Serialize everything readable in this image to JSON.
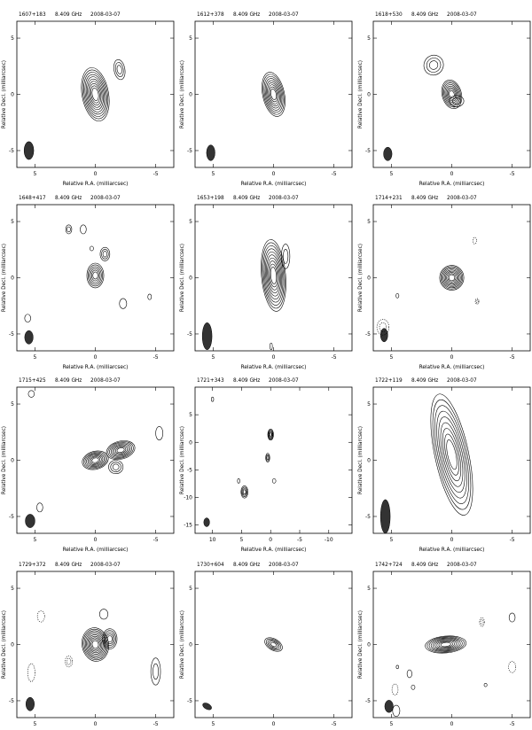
{
  "common": {
    "frequency": "8.409 GHz",
    "date": "2008-03-07",
    "xlabel": "Relative R.A. (milliarcsec)",
    "ylabel": "Relative Decl. (milliarcsec)"
  },
  "panels": [
    {
      "source": "1607+183",
      "xt": [
        "5",
        "0",
        "-5"
      ],
      "yt": [
        "5",
        "0",
        "-5"
      ]
    },
    {
      "source": "1612+378",
      "xt": [
        "5",
        "0",
        "-5"
      ],
      "yt": [
        "5",
        "0",
        "-5"
      ]
    },
    {
      "source": "1618+530",
      "xt": [
        "5",
        "0",
        "-5"
      ],
      "yt": [
        "5",
        "0",
        "-5"
      ]
    },
    {
      "source": "1648+417",
      "xt": [
        "5",
        "0",
        "-5"
      ],
      "yt": [
        "5",
        "0",
        "-5"
      ]
    },
    {
      "source": "1653+198",
      "xt": [
        "5",
        "0",
        "-5"
      ],
      "yt": [
        "5",
        "0",
        "-5"
      ]
    },
    {
      "source": "1714+231",
      "xt": [
        "5",
        "0",
        "-5"
      ],
      "yt": [
        "5",
        "0",
        "-5"
      ]
    },
    {
      "source": "1715+425",
      "xt": [
        "5",
        "0",
        "-5"
      ],
      "yt": [
        "5",
        "0",
        "-5"
      ]
    },
    {
      "source": "1721+343",
      "xt": [
        "10",
        "5",
        "0",
        "-5",
        "-10"
      ],
      "yt": [
        "5",
        "0",
        "-5",
        "-10",
        "-15"
      ]
    },
    {
      "source": "1722+119",
      "xt": [
        "5",
        "0",
        "-5"
      ],
      "yt": [
        "5",
        "0",
        "-5"
      ]
    },
    {
      "source": "1729+372",
      "xt": [
        "5",
        "0",
        "-5"
      ],
      "yt": [
        "5",
        "0",
        "-5"
      ]
    },
    {
      "source": "1730+604",
      "xt": [
        "5",
        "0",
        "-5"
      ],
      "yt": [
        "5",
        "0",
        "-5"
      ]
    },
    {
      "source": "1742+724",
      "xt": [
        "5",
        "0",
        "-5"
      ],
      "yt": [
        "5",
        "0",
        "-5"
      ]
    }
  ]
}
